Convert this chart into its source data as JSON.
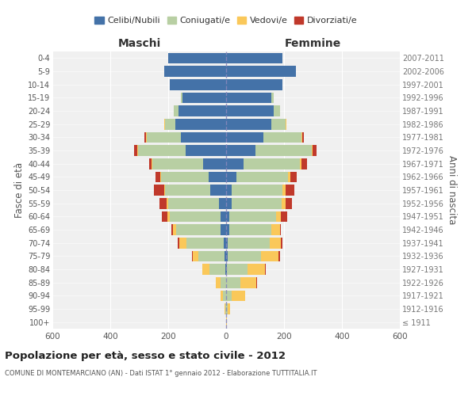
{
  "age_groups": [
    "100+",
    "95-99",
    "90-94",
    "85-89",
    "80-84",
    "75-79",
    "70-74",
    "65-69",
    "60-64",
    "55-59",
    "50-54",
    "45-49",
    "40-44",
    "35-39",
    "30-34",
    "25-29",
    "20-24",
    "15-19",
    "10-14",
    "5-9",
    "0-4"
  ],
  "birth_years": [
    "≤ 1911",
    "1912-1916",
    "1917-1921",
    "1922-1926",
    "1927-1931",
    "1932-1936",
    "1937-1941",
    "1942-1946",
    "1947-1951",
    "1952-1956",
    "1957-1961",
    "1962-1966",
    "1967-1971",
    "1972-1976",
    "1977-1981",
    "1982-1986",
    "1987-1991",
    "1992-1996",
    "1997-2001",
    "2002-2006",
    "2007-2011"
  ],
  "male": {
    "celibi": [
      0,
      0,
      0,
      0,
      3,
      5,
      8,
      18,
      20,
      25,
      55,
      60,
      80,
      140,
      155,
      175,
      165,
      150,
      195,
      215,
      200
    ],
    "coniugati": [
      0,
      3,
      10,
      20,
      55,
      90,
      130,
      155,
      175,
      175,
      155,
      165,
      175,
      165,
      120,
      35,
      15,
      5,
      0,
      0,
      0
    ],
    "vedovi": [
      0,
      2,
      8,
      15,
      25,
      20,
      25,
      10,
      8,
      5,
      3,
      3,
      2,
      2,
      3,
      3,
      0,
      0,
      0,
      0,
      0
    ],
    "divorziati": [
      0,
      0,
      0,
      0,
      0,
      2,
      5,
      5,
      20,
      25,
      35,
      15,
      10,
      10,
      5,
      0,
      0,
      0,
      0,
      0,
      0
    ]
  },
  "female": {
    "nubili": [
      0,
      0,
      0,
      0,
      3,
      5,
      5,
      10,
      12,
      18,
      20,
      35,
      60,
      100,
      130,
      155,
      165,
      155,
      195,
      240,
      195
    ],
    "coniugate": [
      0,
      5,
      20,
      50,
      70,
      115,
      145,
      145,
      160,
      175,
      175,
      180,
      195,
      195,
      130,
      50,
      20,
      10,
      0,
      0,
      0
    ],
    "vedove": [
      2,
      10,
      45,
      55,
      60,
      60,
      40,
      30,
      18,
      12,
      10,
      8,
      5,
      3,
      3,
      2,
      0,
      0,
      0,
      0,
      0
    ],
    "divorziate": [
      0,
      0,
      0,
      2,
      3,
      5,
      5,
      5,
      20,
      22,
      30,
      20,
      20,
      15,
      5,
      2,
      0,
      0,
      0,
      0,
      0
    ]
  },
  "colors": {
    "celibi": "#4472a8",
    "coniugati": "#b8cfa3",
    "vedovi": "#fac85a",
    "divorziati": "#c0392b"
  },
  "title": "Popolazione per età, sesso e stato civile - 2012",
  "subtitle": "COMUNE DI MONTEMARCIANO (AN) - Dati ISTAT 1° gennaio 2012 - Elaborazione TUTTITALIA.IT",
  "xlabel_left": "Maschi",
  "xlabel_right": "Femmine",
  "ylabel_left": "Fasce di età",
  "ylabel_right": "Anni di nascita",
  "xlim": 600,
  "legend_labels": [
    "Celibi/Nubili",
    "Coniugati/e",
    "Vedovi/e",
    "Divorziati/e"
  ],
  "background_color": "#ffffff",
  "grid_color": "#cccccc"
}
